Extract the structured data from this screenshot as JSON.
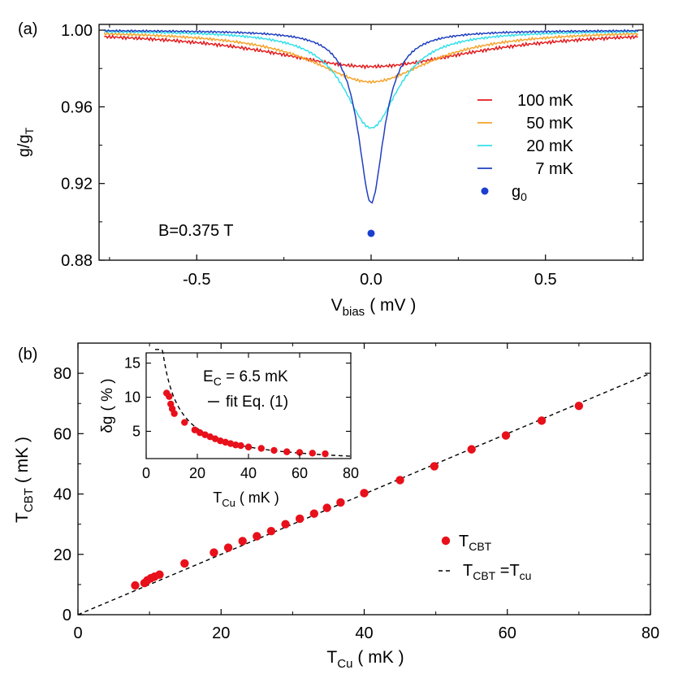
{
  "colors": {
    "100mK": "#e31a1c",
    "50mK": "#f4a32a",
    "20mK": "#33e0ea",
    "7mK": "#1f3fbf",
    "g0": "#1a3fd0",
    "tcbt": "#e8101a",
    "fit": "#000000"
  },
  "chart_data": [
    {
      "id": "a",
      "type": "line",
      "panel_label": "(a)",
      "xlabel": "V",
      "xlabel_sub": "bias",
      "xlabel_units": "( mV )",
      "ylabel": "g/g",
      "ylabel_sub": "T",
      "xlim": [
        -0.78,
        0.78
      ],
      "ylim": [
        0.88,
        1.003
      ],
      "xticks": [
        -0.5,
        0.0,
        0.5
      ],
      "xtick_labels": [
        "-0.5",
        "0.0",
        "0.5"
      ],
      "yticks": [
        0.88,
        0.92,
        0.96,
        1.0
      ],
      "ytick_labels": [
        "0.88",
        "0.92",
        "0.96",
        "1.00"
      ],
      "annotation": "B=0.375 T",
      "series": [
        {
          "key": "100mK",
          "name": "100 mK",
          "min": 0.981,
          "width": 0.36,
          "noise": 0.0009
        },
        {
          "key": "50mK",
          "name": "50 mK",
          "min": 0.973,
          "width": 0.21,
          "noise": 0.0007
        },
        {
          "key": "20mK",
          "name": "20 mK",
          "min": 0.949,
          "width": 0.095,
          "noise": 0.0006
        },
        {
          "key": "7mK",
          "name": "7 mK",
          "min": 0.91,
          "width": 0.045,
          "noise": 0.0005
        }
      ],
      "points": [
        {
          "key": "g0",
          "name": "g",
          "name_sub": "0",
          "x": 0.0,
          "y": 0.894
        }
      ]
    },
    {
      "id": "b",
      "type": "scatter",
      "panel_label": "(b)",
      "xlabel": "T",
      "xlabel_sub": "Cu",
      "xlabel_units": "( mK )",
      "ylabel": "T",
      "ylabel_sub": "CBT",
      "ylabel_units": "( mK )",
      "xlim": [
        0,
        80
      ],
      "ylim": [
        0,
        90
      ],
      "xticks": [
        0,
        20,
        40,
        60,
        80
      ],
      "xtick_labels": [
        "0",
        "20",
        "40",
        "60",
        "80"
      ],
      "yticks": [
        0,
        20,
        40,
        60,
        80
      ],
      "ytick_labels": [
        "0",
        "20",
        "40",
        "60",
        "80"
      ],
      "legend": [
        {
          "kind": "marker",
          "name": "T",
          "name_sub": "CBT"
        },
        {
          "kind": "dashed",
          "name": "T",
          "name_sub": "CBT",
          "name_rest": " =T",
          "name_rest_sub": "cu"
        }
      ],
      "reference_line": {
        "name": "T_CBT = T_cu",
        "slope": 1
      },
      "points": [
        {
          "x": 8,
          "y": 9.7
        },
        {
          "x": 9.3,
          "y": 10.5
        },
        {
          "x": 9.7,
          "y": 11.4
        },
        {
          "x": 10.2,
          "y": 12.1
        },
        {
          "x": 10.7,
          "y": 12.6
        },
        {
          "x": 11.4,
          "y": 13.3
        },
        {
          "x": 14.9,
          "y": 17.0
        },
        {
          "x": 19,
          "y": 20.6
        },
        {
          "x": 21,
          "y": 22.2
        },
        {
          "x": 23,
          "y": 24.4
        },
        {
          "x": 25,
          "y": 26.0
        },
        {
          "x": 27,
          "y": 27.7
        },
        {
          "x": 29,
          "y": 30.0
        },
        {
          "x": 31,
          "y": 31.8
        },
        {
          "x": 33,
          "y": 33.5
        },
        {
          "x": 34.8,
          "y": 35.4
        },
        {
          "x": 36.7,
          "y": 37.2
        },
        {
          "x": 40,
          "y": 40.3
        },
        {
          "x": 45,
          "y": 44.6
        },
        {
          "x": 49.8,
          "y": 49.2
        },
        {
          "x": 55,
          "y": 54.8
        },
        {
          "x": 59.8,
          "y": 59.4
        },
        {
          "x": 64.8,
          "y": 64.3
        },
        {
          "x": 70,
          "y": 69.2
        }
      ],
      "inset": {
        "xlabel": "T",
        "xlabel_sub": "Cu",
        "xlabel_units": "( mK )",
        "ylabel": "δg",
        "ylabel_units": "( % )",
        "xlim": [
          0,
          80
        ],
        "ylim": [
          1.0,
          16.5
        ],
        "xticks": [
          0,
          20,
          40,
          60,
          80
        ],
        "xtick_labels": [
          "0",
          "20",
          "40",
          "60",
          "80"
        ],
        "yticks": [
          5,
          10,
          15
        ],
        "ytick_labels": [
          "5",
          "10",
          "15"
        ],
        "annotation": "E",
        "annotation_sub": "C",
        "annotation_rest": " = 6.5 mK",
        "fit_label": "fit Eq. (1)",
        "fit": {
          "Ec_mK": 6.5,
          "prefactor": 0.1667
        },
        "points": [
          {
            "x": 8,
            "y": 10.6
          },
          {
            "x": 9.0,
            "y": 10.1
          },
          {
            "x": 9.6,
            "y": 9.0
          },
          {
            "x": 10.2,
            "y": 8.3
          },
          {
            "x": 11.0,
            "y": 7.6
          },
          {
            "x": 15,
            "y": 6.3
          },
          {
            "x": 19,
            "y": 5.2
          },
          {
            "x": 21,
            "y": 4.8
          },
          {
            "x": 23,
            "y": 4.5
          },
          {
            "x": 25,
            "y": 4.2
          },
          {
            "x": 27,
            "y": 3.9
          },
          {
            "x": 29,
            "y": 3.6
          },
          {
            "x": 31,
            "y": 3.4
          },
          {
            "x": 33,
            "y": 3.2
          },
          {
            "x": 35,
            "y": 3.0
          },
          {
            "x": 37,
            "y": 2.9
          },
          {
            "x": 40,
            "y": 2.7
          },
          {
            "x": 45,
            "y": 2.5
          },
          {
            "x": 50,
            "y": 2.2
          },
          {
            "x": 55,
            "y": 2.0
          },
          {
            "x": 60,
            "y": 1.9
          },
          {
            "x": 65,
            "y": 1.8
          },
          {
            "x": 70,
            "y": 1.7
          }
        ]
      }
    }
  ]
}
